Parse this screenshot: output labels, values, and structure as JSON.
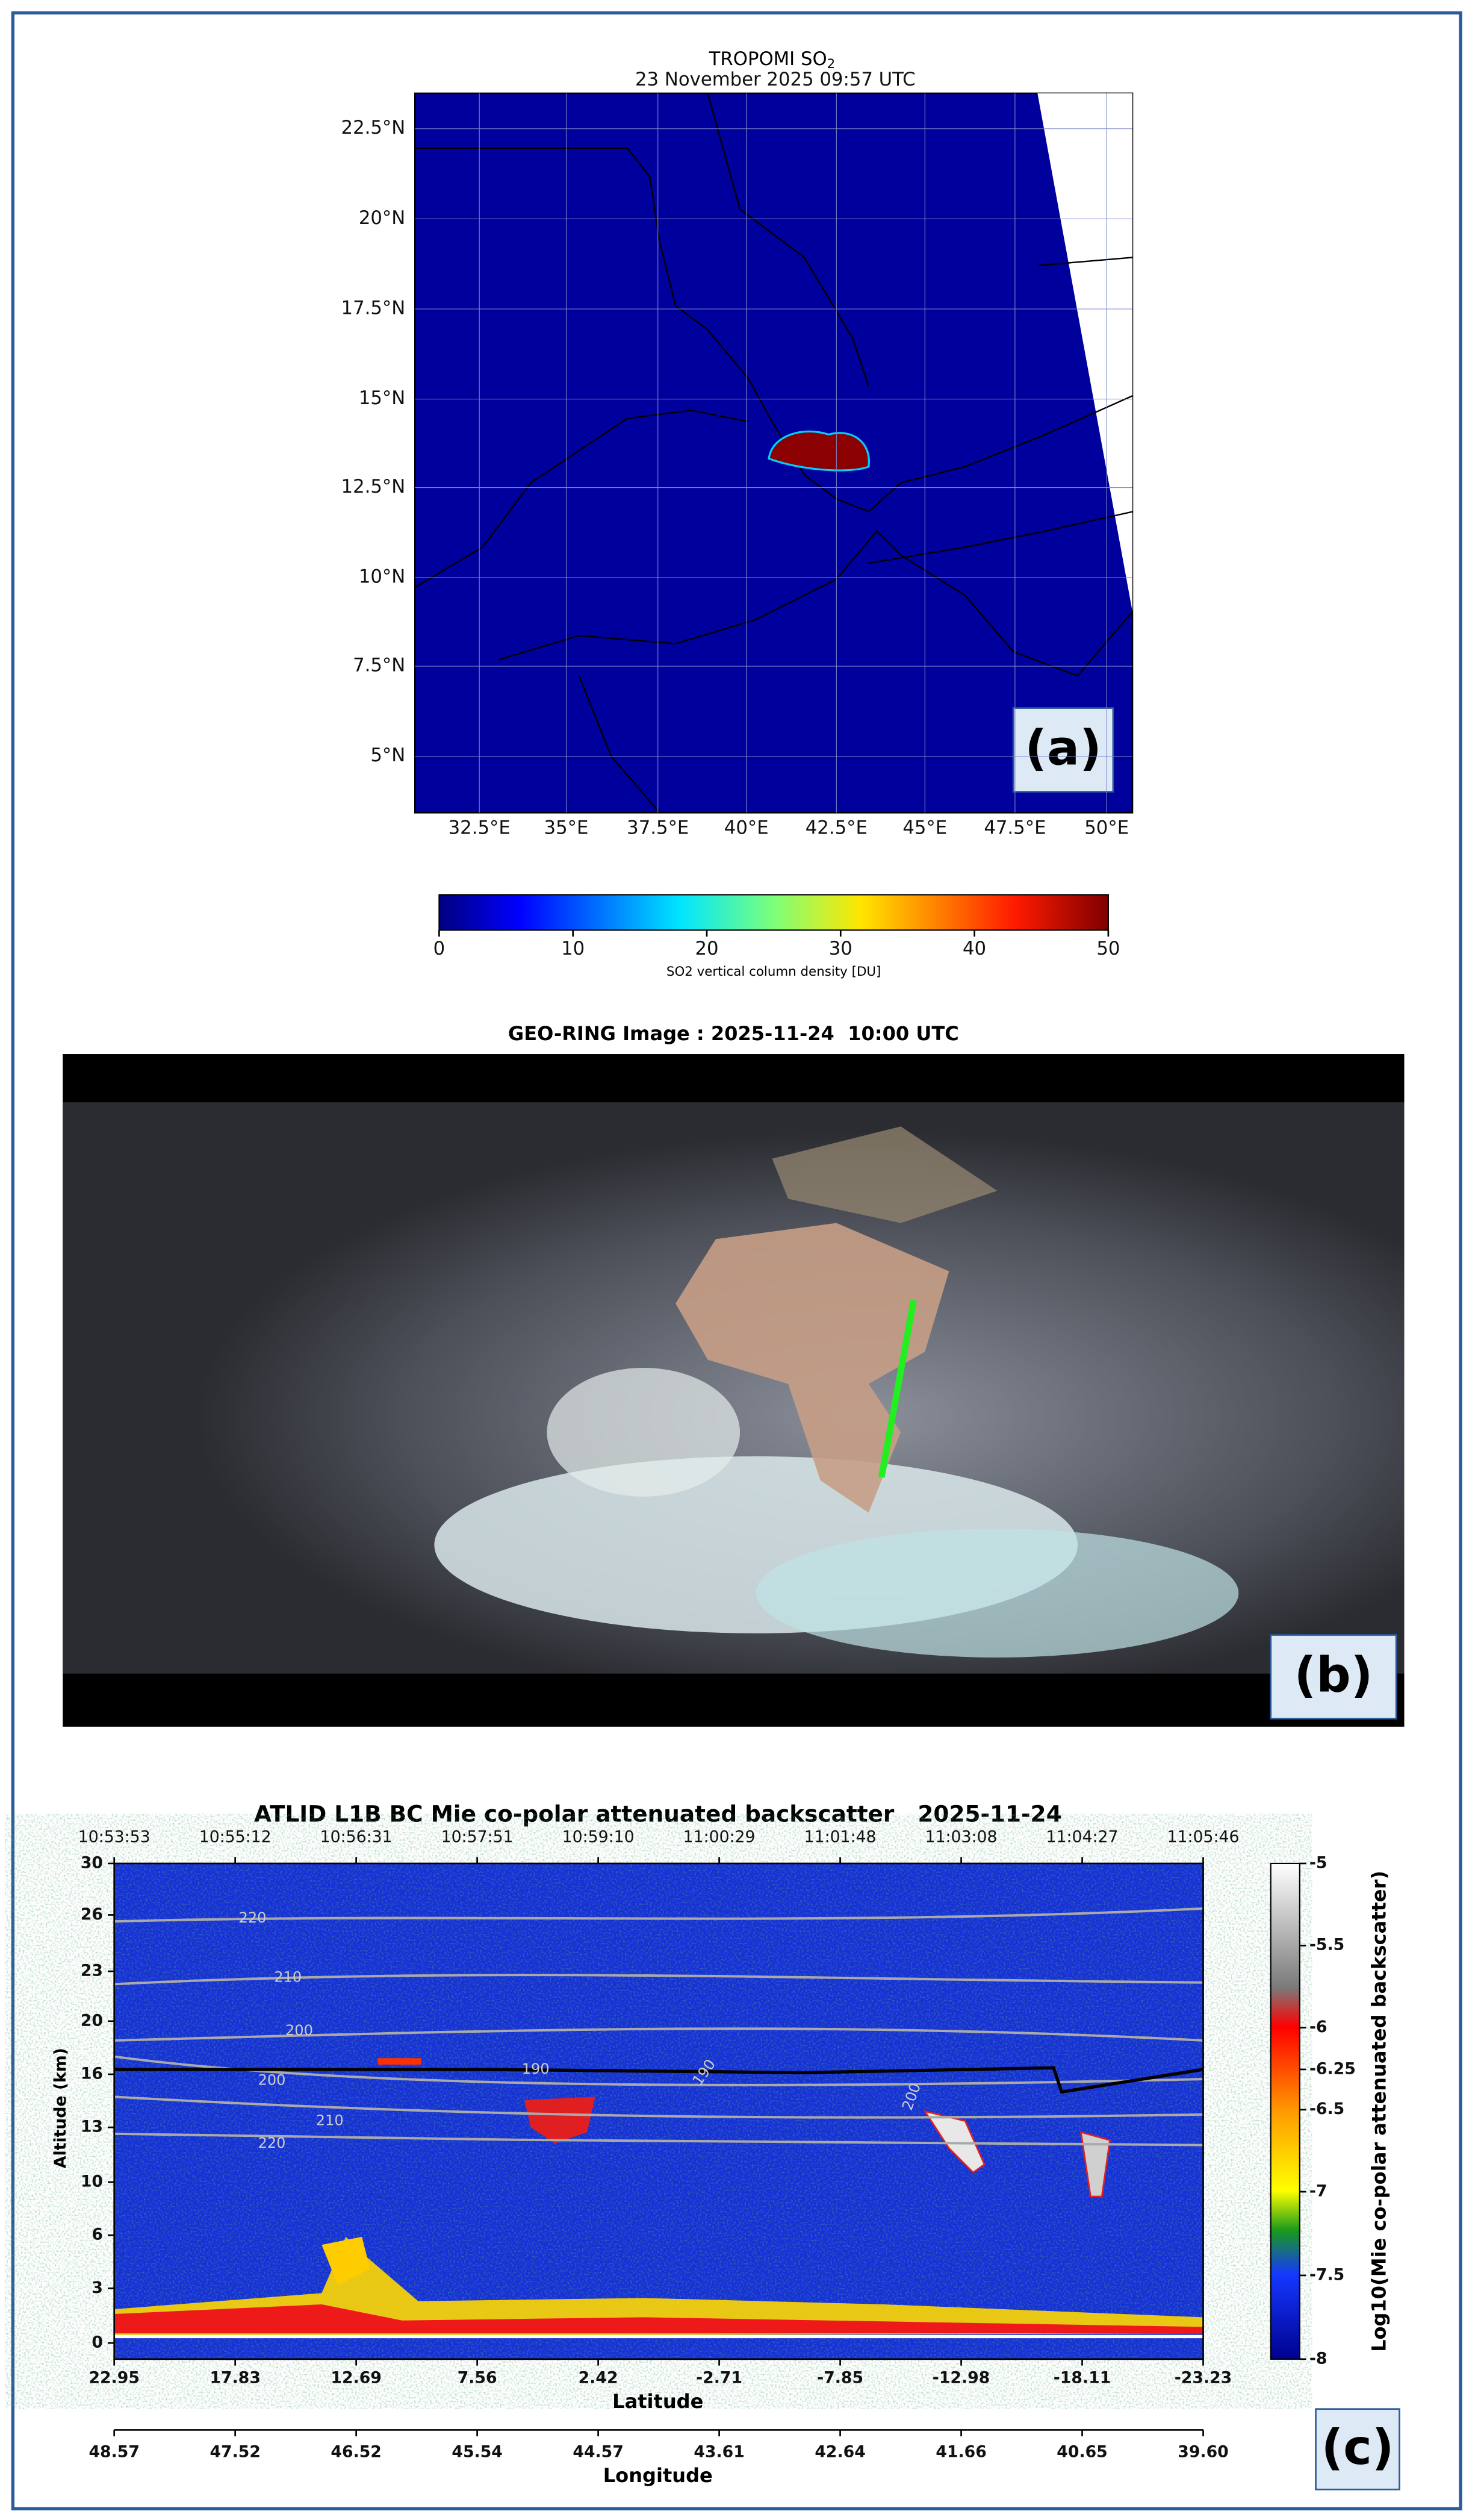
{
  "panel_a": {
    "title_prefix": "TROPOMI SO",
    "title_subscript": "2",
    "subtitle": "23 November 2025 09:57 UTC",
    "lat_ticks": [
      "22.5°N",
      "20°N",
      "17.5°N",
      "15°N",
      "12.5°N",
      "10°N",
      "7.5°N",
      "5°N"
    ],
    "lon_ticks": [
      "32.5°E",
      "35°E",
      "37.5°E",
      "40°E",
      "42.5°E",
      "45°E",
      "47.5°E",
      "50°E"
    ],
    "colorbar_ticks": [
      "0",
      "10",
      "20",
      "30",
      "40",
      "50"
    ],
    "colorbar_label": "SO2 vertical column density [DU]",
    "panel_label": "(a)"
  },
  "panel_b": {
    "title": "GEO-RING Image : 2025-11-24  10:00 UTC",
    "panel_label": "(b)"
  },
  "panel_c": {
    "title": "ATLID L1B BC Mie co-polar attenuated backscatter   2025-11-24",
    "time_ticks": [
      "10:53:53",
      "10:55:12",
      "10:56:31",
      "10:57:51",
      "10:59:10",
      "11:00:29",
      "11:01:48",
      "11:03:08",
      "11:04:27",
      "11:05:46"
    ],
    "altitude_ticks": [
      "30",
      "26",
      "23",
      "20",
      "16",
      "13",
      "10",
      "6",
      "3",
      "0"
    ],
    "y_label": "Altitude (km)",
    "latitude_ticks": [
      "22.95",
      "17.83",
      "12.69",
      "7.56",
      "2.42",
      "-2.71",
      "-7.85",
      "-12.98",
      "-18.11",
      "-23.23"
    ],
    "x_label": "Latitude",
    "longitude_ticks": [
      "48.57",
      "47.52",
      "46.52",
      "45.54",
      "44.57",
      "43.61",
      "42.64",
      "41.66",
      "40.65",
      "39.60"
    ],
    "x2_label": "Longitude",
    "colorbar_ticks": [
      "-5",
      "-5.5",
      "-6",
      "-6.25",
      "-6.5",
      "-7",
      "-7.5",
      "-8"
    ],
    "colorbar_label": "Log10(Mie co-polar attenuated backscatter)",
    "contour_labels": [
      "220",
      "210",
      "200",
      "190",
      "190",
      "200",
      "210",
      "220",
      "200"
    ],
    "panel_label": "(c)"
  }
}
